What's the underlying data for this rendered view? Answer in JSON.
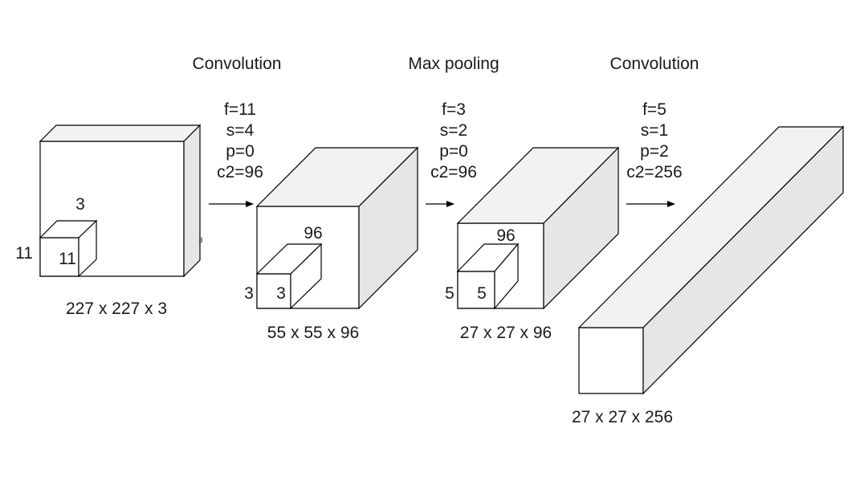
{
  "layers": [
    {
      "dims": "227 x 227 x 3",
      "kernel": {
        "top": "3",
        "side": "11",
        "front": "11"
      },
      "depth_label": "3"
    },
    {
      "dims": "55 x 55 x 96",
      "kernel": {
        "top": "96",
        "side": "3",
        "front": "3"
      }
    },
    {
      "dims": "27 x 27 x 96",
      "kernel": {
        "top": "96",
        "side": "5",
        "front": "5"
      }
    },
    {
      "dims": "27 x 27 x 256"
    }
  ],
  "operations": [
    {
      "name": "Convolution",
      "params": [
        "f=11",
        "s=4",
        "p=0",
        "c2=96"
      ]
    },
    {
      "name": "Max pooling",
      "params": [
        "f=3",
        "s=2",
        "p=0",
        "c2=96"
      ]
    },
    {
      "name": "Convolution",
      "params": [
        "f=5",
        "s=1",
        "p=2",
        "c2=256"
      ]
    }
  ],
  "colors": {
    "front": "#ffffff",
    "top": "#f2f2f2",
    "side": "#e6e6e6",
    "stroke": "#000000"
  }
}
